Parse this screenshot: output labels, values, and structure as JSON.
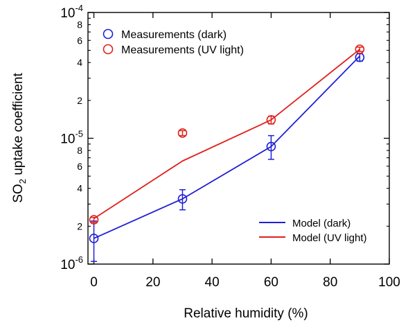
{
  "chart_data": {
    "type": "scatter",
    "xlabel": "Relative humidity (%)",
    "ylabel_main": "SO",
    "ylabel_sub": "2",
    "ylabel_rest": " uptake coefficient",
    "xlim": [
      -2,
      100
    ],
    "ylim": [
      1e-06,
      0.0001
    ],
    "yscale": "log",
    "grid": false,
    "x_ticks": [
      0,
      20,
      40,
      60,
      80,
      100
    ],
    "x_tick_labels": [
      "0",
      "20",
      "40",
      "60",
      "80",
      "100"
    ],
    "y_decade_ticks": [
      {
        "value": 1e-06,
        "base": "10",
        "exp": "-6"
      },
      {
        "value": 1e-05,
        "base": "10",
        "exp": "-5"
      },
      {
        "value": 0.0001,
        "base": "10",
        "exp": "-4"
      }
    ],
    "y_minor_labels": [
      {
        "value": 2e-06,
        "label": "2"
      },
      {
        "value": 4e-06,
        "label": "4"
      },
      {
        "value": 6e-06,
        "label": "6"
      },
      {
        "value": 8e-06,
        "label": "8"
      },
      {
        "value": 2e-05,
        "label": "2"
      },
      {
        "value": 4e-05,
        "label": "4"
      },
      {
        "value": 6e-05,
        "label": "6"
      },
      {
        "value": 8e-05,
        "label": "8"
      }
    ],
    "y_minor_ticks": [
      2e-06,
      3e-06,
      4e-06,
      5e-06,
      6e-06,
      7e-06,
      8e-06,
      9e-06,
      2e-05,
      3e-05,
      4e-05,
      5e-05,
      6e-05,
      7e-05,
      8e-05,
      9e-05
    ],
    "series": [
      {
        "name": "Measurements (dark)",
        "kind": "markers",
        "color": "#1f1fd6",
        "points": [
          {
            "x": 0,
            "y": 1.6e-06,
            "ylow": 1.05e-06,
            "yhigh": 2.2e-06
          },
          {
            "x": 30,
            "y": 3.3e-06,
            "ylow": 2.7e-06,
            "yhigh": 3.9e-06
          },
          {
            "x": 60,
            "y": 8.6e-06,
            "ylow": 6.8e-06,
            "yhigh": 1.05e-05
          },
          {
            "x": 90,
            "y": 4.4e-05,
            "ylow": 4.1e-05,
            "yhigh": 4.7e-05
          }
        ]
      },
      {
        "name": "Measurements (UV light)",
        "kind": "markers",
        "color": "#e0201b",
        "points": [
          {
            "x": 0,
            "y": 2.25e-06,
            "ylow": 2.15e-06,
            "yhigh": 2.35e-06
          },
          {
            "x": 30,
            "y": 1.1e-05,
            "ylow": 1.05e-05,
            "yhigh": 1.15e-05
          },
          {
            "x": 60,
            "y": 1.4e-05,
            "ylow": 1.3e-05,
            "yhigh": 1.5e-05
          },
          {
            "x": 90,
            "y": 5.1e-05,
            "ylow": 4.9e-05,
            "yhigh": 5.3e-05
          }
        ]
      },
      {
        "name": "Model (dark)",
        "kind": "line",
        "color": "#1f1fd6",
        "x": [
          0,
          30,
          60,
          90
        ],
        "y": [
          1.6e-06,
          3.3e-06,
          8.6e-06,
          4.5e-05
        ]
      },
      {
        "name": "Model (UV light)",
        "kind": "line",
        "color": "#e0201b",
        "x": [
          0,
          30,
          60,
          90
        ],
        "y": [
          2.3e-06,
          6.6e-06,
          1.4e-05,
          5.1e-05
        ]
      }
    ],
    "legend_top": [
      "Measurements (dark)",
      "Measurements (UV light)"
    ],
    "legend_bottom": [
      "Model (dark)",
      "Model (UV light)"
    ]
  }
}
